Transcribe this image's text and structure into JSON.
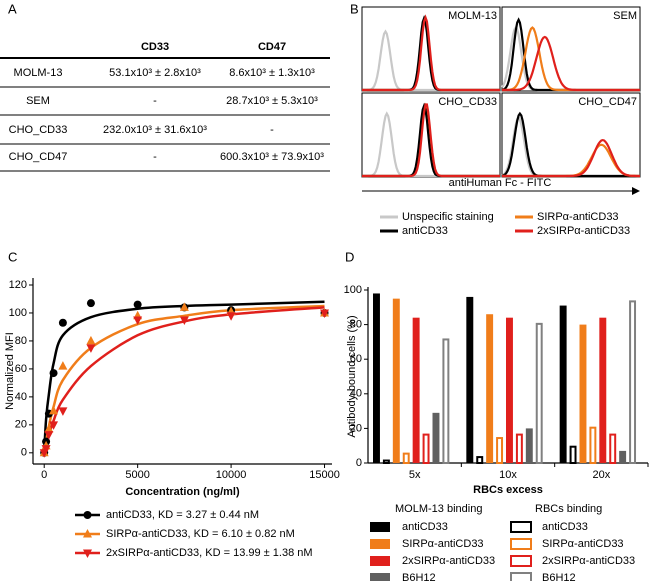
{
  "table": {
    "label": "A",
    "columns": [
      "CD33",
      "CD47"
    ],
    "rows": [
      [
        "MOLM-13",
        "53.1x10³ ± 2.8x10³",
        "8.6x10³ ± 1.3x10³"
      ],
      [
        "SEM",
        "-",
        "28.7x10³ ± 5.3x10³"
      ],
      [
        "CHO_CD33",
        "232.0x10³ ± 31.6x10³",
        "-"
      ],
      [
        "CHO_CD47",
        "-",
        "600.3x10³ ± 73.9x10³"
      ]
    ]
  },
  "flow": {
    "label": "B",
    "panels": [
      "MOLM-13",
      "SEM",
      "CHO_CD33",
      "CHO_CD47"
    ],
    "xlabel": "antiHuman Fc - FITC",
    "legend": [
      {
        "name": "Unspecific staining",
        "color": "#c8c8c8"
      },
      {
        "name": "antiCD33",
        "color": "#000000"
      },
      {
        "name": "SIRPα-antiCD33",
        "color": "#f07d1a"
      },
      {
        "name": "2xSIRPα-antiCD33",
        "color": "#e0201c"
      }
    ]
  },
  "chart_data": [
    {
      "label": "C",
      "type": "line",
      "xlabel": "Concentration (ng/ml)",
      "ylabel": "Normalized MFI",
      "x": [
        0,
        100,
        250,
        500,
        1000,
        2500,
        5000,
        7500,
        10000,
        15000
      ],
      "xlim": [
        -600,
        15400
      ],
      "xticks": [
        0,
        5000,
        10000,
        15000
      ],
      "ylim": [
        -8,
        125
      ],
      "yticks": [
        0,
        20,
        40,
        60,
        80,
        100,
        120
      ],
      "series": [
        {
          "name": "antiCD33, KD = 3.27 ± 0.44 nM",
          "color": "#000000",
          "marker": "circle",
          "values": [
            0,
            8,
            28,
            57,
            93,
            107,
            106,
            104,
            102,
            100
          ],
          "fit_values": [
            0,
            24,
            42,
            64,
            84,
            97,
            103,
            105,
            106,
            108
          ]
        },
        {
          "name": "SIRPα-antiCD33, KD = 6.10 ± 0.82 nM",
          "color": "#f07d1a",
          "marker": "triangle-up",
          "values": [
            0,
            5,
            17,
            30,
            62,
            80,
            98,
            104,
            101,
            100
          ],
          "fit_values": [
            0,
            8,
            19,
            33,
            52,
            75,
            92,
            98,
            102,
            105
          ]
        },
        {
          "name": "2xSIRPα-antiCD33, KD = 13.99 ± 1.38 nM",
          "color": "#e0201c",
          "marker": "triangle-down",
          "values": [
            0,
            3,
            13,
            20,
            30,
            75,
            95,
            95,
            98,
            100
          ],
          "fit_values": [
            0,
            5,
            13,
            23,
            38,
            62,
            84,
            94,
            99,
            104
          ]
        }
      ]
    },
    {
      "label": "D",
      "type": "bar",
      "xlabel": "RBCs excess",
      "ylabel": "Antibody-bound cells (%)",
      "categories": [
        "5x",
        "10x",
        "20x"
      ],
      "ylim": [
        0,
        100
      ],
      "yticks": [
        0,
        20,
        40,
        60,
        80,
        100
      ],
      "series": [
        {
          "name": "antiCD33",
          "group": "MOLM-13 binding",
          "hollow": false,
          "color": "#000000",
          "values": [
            98,
            96,
            91
          ]
        },
        {
          "name": "antiCD33",
          "group": "RBCs binding",
          "hollow": true,
          "color": "#000000",
          "values": [
            2,
            4,
            10
          ]
        },
        {
          "name": "SIRPα-antiCD33",
          "group": "MOLM-13 binding",
          "hollow": false,
          "color": "#f07d1a",
          "values": [
            95,
            86,
            80
          ]
        },
        {
          "name": "SIRPα-antiCD33",
          "group": "RBCs binding",
          "hollow": true,
          "color": "#f07d1a",
          "values": [
            6,
            15,
            21
          ]
        },
        {
          "name": "2xSIRPα-antiCD33",
          "group": "MOLM-13 binding",
          "hollow": false,
          "color": "#e0201c",
          "values": [
            84,
            84,
            84
          ]
        },
        {
          "name": "2xSIRPα-antiCD33",
          "group": "RBCs binding",
          "hollow": true,
          "color": "#e0201c",
          "values": [
            17,
            17,
            17
          ]
        },
        {
          "name": "B6H12",
          "group": "MOLM-13 binding",
          "hollow": false,
          "color": "#606060",
          "values": [
            29,
            20,
            7
          ]
        },
        {
          "name": "B6H12",
          "group": "RBCs binding",
          "hollow": true,
          "color": "#808080",
          "values": [
            72,
            81,
            94
          ]
        }
      ]
    }
  ]
}
